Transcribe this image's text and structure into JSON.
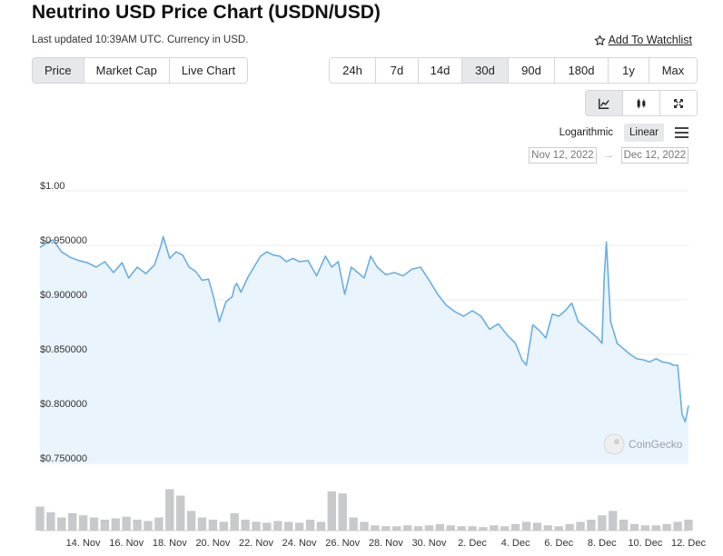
{
  "header": {
    "title": "Neutrino USD Price Chart (USDN/USD)",
    "updated": "Last updated 10:39AM UTC. Currency in USD.",
    "watchlist_label": "Add To Watchlist"
  },
  "type_tabs": [
    {
      "label": "Price",
      "active": true
    },
    {
      "label": "Market Cap",
      "active": false
    },
    {
      "label": "Live Chart",
      "active": false
    }
  ],
  "range_tabs": [
    {
      "label": "24h",
      "active": false
    },
    {
      "label": "7d",
      "active": false
    },
    {
      "label": "14d",
      "active": false
    },
    {
      "label": "30d",
      "active": true
    },
    {
      "label": "90d",
      "active": false
    },
    {
      "label": "180d",
      "active": false
    },
    {
      "label": "1y",
      "active": false
    },
    {
      "label": "Max",
      "active": false
    }
  ],
  "view_buttons": [
    {
      "icon": "line-chart-icon",
      "active": true
    },
    {
      "icon": "candlestick-icon",
      "active": false
    },
    {
      "icon": "expand-icon",
      "active": false
    }
  ],
  "scale": {
    "logarithmic": "Logarithmic",
    "linear": "Linear",
    "active": "Linear"
  },
  "date_range": {
    "from": "Nov 12, 2022",
    "to": "Dec 12, 2022",
    "arrow": "→"
  },
  "watermark": "CoinGecko",
  "colors": {
    "line": "#6aaee3",
    "fill": "#eaf4fc",
    "volume": "#c7c9cc",
    "active_tab": "#e6e8eb"
  },
  "chart_data": {
    "type": "line",
    "y_tick_labels": [
      "$1.00",
      "$0.950000",
      "$0.900000",
      "$0.850000",
      "$0.800000",
      "$0.750000"
    ],
    "y_tick_values": [
      1.0,
      0.95,
      0.9,
      0.85,
      0.8,
      0.75
    ],
    "ylim": [
      0.75,
      1.0
    ],
    "x_tick_labels": [
      "14. Nov",
      "16. Nov",
      "18. Nov",
      "20. Nov",
      "22. Nov",
      "24. Nov",
      "26. Nov",
      "28. Nov",
      "30. Nov",
      "2. Dec",
      "4. Dec",
      "6. Dec",
      "8. Dec",
      "10. Dec",
      "12. Dec"
    ],
    "x_tick_days": [
      2,
      4,
      6,
      8,
      10,
      12,
      14,
      16,
      18,
      20,
      22,
      24,
      26,
      28,
      30
    ],
    "x_range_days": [
      0,
      30
    ],
    "series": [
      {
        "name": "Price",
        "x_days": [
          0,
          0.3,
          0.6,
          1.0,
          1.4,
          1.8,
          2.2,
          2.6,
          3.0,
          3.4,
          3.8,
          4.1,
          4.5,
          4.9,
          5.3,
          5.6,
          5.7,
          6.0,
          6.3,
          6.6,
          6.9,
          7.2,
          7.5,
          7.8,
          8.0,
          8.3,
          8.6,
          8.9,
          9.0,
          9.1,
          9.3,
          9.6,
          9.9,
          10.2,
          10.5,
          10.8,
          11.1,
          11.4,
          11.7,
          12.0,
          12.4,
          12.8,
          13.2,
          13.5,
          13.8,
          14.1,
          14.4,
          14.7,
          15.0,
          15.3,
          15.6,
          16.0,
          16.4,
          16.8,
          17.2,
          17.6,
          18.0,
          18.4,
          18.8,
          19.2,
          19.6,
          20.0,
          20.4,
          20.8,
          21.2,
          21.6,
          22.0,
          22.3,
          22.5,
          22.8,
          23.1,
          23.4,
          23.7,
          24.0,
          24.3,
          24.6,
          24.9,
          25.2,
          25.5,
          25.8,
          26.0,
          26.1,
          26.2,
          26.4,
          26.7,
          27.0,
          27.3,
          27.6,
          27.9,
          28.2,
          28.5,
          28.8,
          29.1,
          29.3,
          29.5,
          29.7,
          29.85,
          30.0
        ],
        "values": [
          0.948,
          0.952,
          0.955,
          0.944,
          0.939,
          0.936,
          0.934,
          0.93,
          0.935,
          0.925,
          0.934,
          0.92,
          0.93,
          0.924,
          0.932,
          0.95,
          0.958,
          0.938,
          0.944,
          0.941,
          0.93,
          0.926,
          0.918,
          0.919,
          0.905,
          0.88,
          0.898,
          0.903,
          0.912,
          0.915,
          0.907,
          0.92,
          0.93,
          0.94,
          0.944,
          0.941,
          0.94,
          0.935,
          0.938,
          0.935,
          0.936,
          0.922,
          0.94,
          0.93,
          0.935,
          0.905,
          0.93,
          0.925,
          0.92,
          0.94,
          0.93,
          0.923,
          0.925,
          0.922,
          0.928,
          0.93,
          0.918,
          0.905,
          0.895,
          0.889,
          0.885,
          0.89,
          0.885,
          0.873,
          0.878,
          0.868,
          0.86,
          0.845,
          0.84,
          0.877,
          0.872,
          0.865,
          0.887,
          0.885,
          0.89,
          0.897,
          0.88,
          0.875,
          0.87,
          0.865,
          0.86,
          0.92,
          0.953,
          0.88,
          0.86,
          0.855,
          0.85,
          0.846,
          0.845,
          0.843,
          0.846,
          0.843,
          0.842,
          0.84,
          0.84,
          0.795,
          0.788,
          0.803
        ]
      }
    ],
    "volume": {
      "x_days": [
        0,
        0.5,
        1,
        1.5,
        2,
        2.5,
        3,
        3.5,
        4,
        4.5,
        5,
        5.5,
        6,
        6.5,
        7,
        7.5,
        8,
        8.5,
        9,
        9.5,
        10,
        10.5,
        11,
        11.5,
        12,
        12.5,
        13,
        13.5,
        14,
        14.5,
        15,
        15.5,
        16,
        16.5,
        17,
        17.5,
        18,
        18.5,
        19,
        19.5,
        20,
        20.5,
        21,
        21.5,
        22,
        22.5,
        23,
        23.5,
        24,
        24.5,
        25,
        25.5,
        26,
        26.5,
        27,
        27.5,
        28,
        28.5,
        29,
        29.5,
        30
      ],
      "relative": [
        0.55,
        0.42,
        0.3,
        0.4,
        0.35,
        0.3,
        0.25,
        0.28,
        0.32,
        0.25,
        0.22,
        0.3,
        0.95,
        0.8,
        0.45,
        0.3,
        0.25,
        0.2,
        0.4,
        0.25,
        0.2,
        0.18,
        0.22,
        0.2,
        0.18,
        0.25,
        0.2,
        0.9,
        0.85,
        0.3,
        0.2,
        0.12,
        0.1,
        0.1,
        0.12,
        0.1,
        0.12,
        0.15,
        0.12,
        0.1,
        0.1,
        0.08,
        0.12,
        0.1,
        0.15,
        0.2,
        0.18,
        0.12,
        0.1,
        0.15,
        0.2,
        0.25,
        0.35,
        0.45,
        0.25,
        0.15,
        0.12,
        0.12,
        0.15,
        0.2,
        0.25
      ]
    }
  }
}
